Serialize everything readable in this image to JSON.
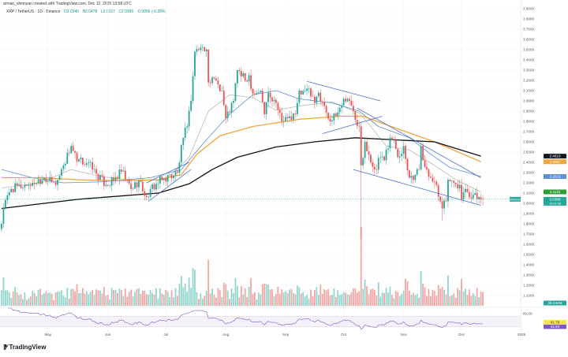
{
  "header": {
    "credit": "arman_shirinyan created with TradingView.com, Dec 12, 2025 13:58 UTC",
    "symbol": "XRP / TetherUS · 1D · Binance",
    "open": "O2.0340",
    "high": "H2.0478",
    "low": "L2.0157",
    "close": "C2.0396",
    "change": "-0.0056 (-0.28%)"
  },
  "footer": {
    "logo_text": "TradingView"
  },
  "colors": {
    "up": "#26a69a",
    "down": "#ef5350",
    "vol_up": "#93d5cd",
    "vol_down": "#f5a5a3",
    "ma20": "#b8bcb0",
    "ma50": "#5b8fd6",
    "ma100": "#f2a33a",
    "ma200": "#111111",
    "trend": "#4a6fd0",
    "rsi": "#7e57c2"
  },
  "chart_data": {
    "type": "candlestick",
    "title": "XRP / TetherUS · 1D · Binance",
    "x_unit": "days since 2025-04-07",
    "xlim": [
      0,
      270
    ],
    "ylim": [
      1.0,
      3.95
    ],
    "xticks": [
      {
        "day": 24,
        "label": "May"
      },
      {
        "day": 55,
        "label": "Jun"
      },
      {
        "day": 85,
        "label": "Jul"
      },
      {
        "day": 116,
        "label": "Aug"
      },
      {
        "day": 147,
        "label": "Sep"
      },
      {
        "day": 177,
        "label": "Oct"
      },
      {
        "day": 208,
        "label": "Nov"
      },
      {
        "day": 238,
        "label": "Dec"
      },
      {
        "day": 269,
        "label": "2026"
      }
    ],
    "yticks": [
      "3.9000",
      "3.8000",
      "3.7000",
      "3.6000",
      "3.5000",
      "3.4000",
      "3.3000",
      "3.2000",
      "3.1000",
      "3.0000",
      "2.9000",
      "2.8000",
      "2.7000",
      "2.6000",
      "2.5000",
      "2.4000",
      "2.3000",
      "2.2000",
      "2.1000",
      "2.0000",
      "1.9000",
      "1.8000",
      "1.7000",
      "1.6000",
      "1.5000",
      "1.4000",
      "1.3000",
      "1.2000",
      "1.1000"
    ],
    "close_keypoints": [
      [
        0,
        1.8
      ],
      [
        1,
        1.96
      ],
      [
        5,
        2.14
      ],
      [
        16,
        2.2
      ],
      [
        22,
        2.25
      ],
      [
        28,
        2.18
      ],
      [
        32,
        2.37
      ],
      [
        36,
        2.56
      ],
      [
        39,
        2.41
      ],
      [
        45,
        2.4
      ],
      [
        47,
        2.33
      ],
      [
        54,
        2.18
      ],
      [
        58,
        2.22
      ],
      [
        62,
        2.31
      ],
      [
        67,
        2.14
      ],
      [
        71,
        2.22
      ],
      [
        75,
        2.06
      ],
      [
        77,
        2.14
      ],
      [
        83,
        2.23
      ],
      [
        91,
        2.3
      ],
      [
        94,
        2.64
      ],
      [
        96,
        2.75
      ],
      [
        98,
        3.0
      ],
      [
        100,
        3.48
      ],
      [
        103,
        3.52
      ],
      [
        106,
        3.5
      ],
      [
        107,
        3.18
      ],
      [
        111,
        3.2
      ],
      [
        114,
        3.1
      ],
      [
        116,
        2.83
      ],
      [
        120,
        3.0
      ],
      [
        122,
        3.3
      ],
      [
        126,
        3.2
      ],
      [
        128,
        3.25
      ],
      [
        130,
        3.07
      ],
      [
        134,
        3.1
      ],
      [
        136,
        2.87
      ],
      [
        138,
        3.08
      ],
      [
        142,
        2.98
      ],
      [
        145,
        2.8
      ],
      [
        148,
        2.83
      ],
      [
        152,
        2.87
      ],
      [
        154,
        3.1
      ],
      [
        158,
        3.12
      ],
      [
        162,
        2.98
      ],
      [
        164,
        3.08
      ],
      [
        167,
        2.95
      ],
      [
        170,
        2.8
      ],
      [
        173,
        2.85
      ],
      [
        177,
        3.02
      ],
      [
        179,
        3.02
      ],
      [
        182,
        2.9
      ],
      [
        185,
        2.75
      ],
      [
        186,
        2.37
      ],
      [
        188,
        2.6
      ],
      [
        191,
        2.4
      ],
      [
        193,
        2.33
      ],
      [
        196,
        2.45
      ],
      [
        198,
        2.42
      ],
      [
        201,
        2.64
      ],
      [
        203,
        2.62
      ],
      [
        205,
        2.45
      ],
      [
        208,
        2.56
      ],
      [
        211,
        2.25
      ],
      [
        214,
        2.28
      ],
      [
        216,
        2.33
      ],
      [
        217,
        2.56
      ],
      [
        218,
        2.42
      ],
      [
        222,
        2.25
      ],
      [
        225,
        2.18
      ],
      [
        227,
        2.02
      ],
      [
        228,
        1.95
      ],
      [
        230,
        2.02
      ],
      [
        231,
        2.23
      ],
      [
        234,
        2.2
      ],
      [
        237,
        2.18
      ],
      [
        238,
        2.04
      ],
      [
        240,
        2.14
      ],
      [
        242,
        2.06
      ],
      [
        245,
        2.1
      ],
      [
        246,
        2.04
      ],
      [
        249,
        2.0396
      ]
    ],
    "low_overrides": [
      [
        186,
        1.65
      ],
      [
        228,
        1.83
      ],
      [
        0,
        1.72
      ]
    ],
    "moving_averages": [
      {
        "name": "MA20",
        "color_key": "ma20",
        "points": [
          [
            0,
            2.15
          ],
          [
            20,
            2.2
          ],
          [
            36,
            2.33
          ],
          [
            52,
            2.26
          ],
          [
            69,
            2.22
          ],
          [
            85,
            2.23
          ],
          [
            97,
            2.45
          ],
          [
            107,
            2.9
          ],
          [
            118,
            3.06
          ],
          [
            130,
            3.03
          ],
          [
            142,
            2.91
          ],
          [
            154,
            2.95
          ],
          [
            171,
            2.99
          ],
          [
            185,
            2.88
          ],
          [
            191,
            2.75
          ],
          [
            199,
            2.56
          ],
          [
            211,
            2.52
          ],
          [
            224,
            2.37
          ],
          [
            236,
            2.22
          ],
          [
            248,
            2.1115
          ]
        ]
      },
      {
        "name": "MA50",
        "color_key": "ma50",
        "points": [
          [
            0,
            2.33
          ],
          [
            16,
            2.25
          ],
          [
            32,
            2.2
          ],
          [
            52,
            2.21
          ],
          [
            77,
            2.25
          ],
          [
            93,
            2.33
          ],
          [
            105,
            2.6
          ],
          [
            118,
            2.87
          ],
          [
            130,
            3.06
          ],
          [
            142,
            3.1
          ],
          [
            154,
            3.02
          ],
          [
            171,
            2.98
          ],
          [
            185,
            2.9
          ],
          [
            195,
            2.75
          ],
          [
            211,
            2.64
          ],
          [
            222,
            2.48
          ],
          [
            232,
            2.35
          ],
          [
            248,
            2.2619
          ]
        ]
      },
      {
        "name": "MA100",
        "color_key": "ma100",
        "points": [
          [
            0,
            2.25
          ],
          [
            20,
            2.25
          ],
          [
            40,
            2.23
          ],
          [
            60,
            2.22
          ],
          [
            81,
            2.23
          ],
          [
            93,
            2.28
          ],
          [
            101,
            2.48
          ],
          [
            113,
            2.66
          ],
          [
            130,
            2.75
          ],
          [
            154,
            2.82
          ],
          [
            175,
            2.85
          ],
          [
            187,
            2.85
          ],
          [
            203,
            2.74
          ],
          [
            224,
            2.6
          ],
          [
            248,
            2.4057
          ]
        ]
      },
      {
        "name": "MA200",
        "color_key": "ma200",
        "points": [
          [
            0,
            1.95
          ],
          [
            40,
            2.04
          ],
          [
            81,
            2.1
          ],
          [
            97,
            2.19
          ],
          [
            109,
            2.33
          ],
          [
            122,
            2.45
          ],
          [
            142,
            2.55
          ],
          [
            162,
            2.6
          ],
          [
            183,
            2.64
          ],
          [
            203,
            2.62
          ],
          [
            224,
            2.6
          ],
          [
            248,
            2.461
          ]
        ]
      }
    ],
    "trendlines": [
      [
        [
          75,
          2.2
        ],
        [
          97,
          2.4
        ]
      ],
      [
        [
          76,
          2.02
        ],
        [
          98,
          2.33
        ]
      ],
      [
        [
          158,
          3.19
        ],
        [
          196,
          3.0
        ]
      ],
      [
        [
          166,
          2.68
        ],
        [
          197,
          2.85
        ]
      ],
      [
        [
          184,
          2.93
        ],
        [
          248,
          2.25
        ]
      ],
      [
        [
          182,
          2.33
        ],
        [
          248,
          1.98
        ]
      ]
    ],
    "price_badges": [
      {
        "value": "2.4610",
        "price": 2.461,
        "bg": "#131722",
        "fg": "#ffffff"
      },
      {
        "value": "2.4057",
        "price": 2.4057,
        "bg": "#f2a33a",
        "fg": "#ffffff"
      },
      {
        "value": "2.2619",
        "price": 2.2619,
        "bg": "#5b8fd6",
        "fg": "#ffffff"
      },
      {
        "value": "2.1115",
        "price": 2.1115,
        "bg": "#2e9e3a",
        "fg": "#ffffff"
      }
    ],
    "last_price": {
      "symbol": "XRPUSDT",
      "value": "2.0396",
      "countdown": "10:01:08",
      "price": 2.0396,
      "bg": "#26a69a"
    },
    "volume": {
      "last_label": "26.244M",
      "bg": "#26a69a"
    },
    "rsi": {
      "axis_label": "80.00",
      "value_label": "41.76",
      "ma_label": "42.60",
      "value_bg": "#f7e34a",
      "ma_bg": "#7e57c2",
      "period": 14,
      "upper": 70,
      "lower": 30
    }
  }
}
